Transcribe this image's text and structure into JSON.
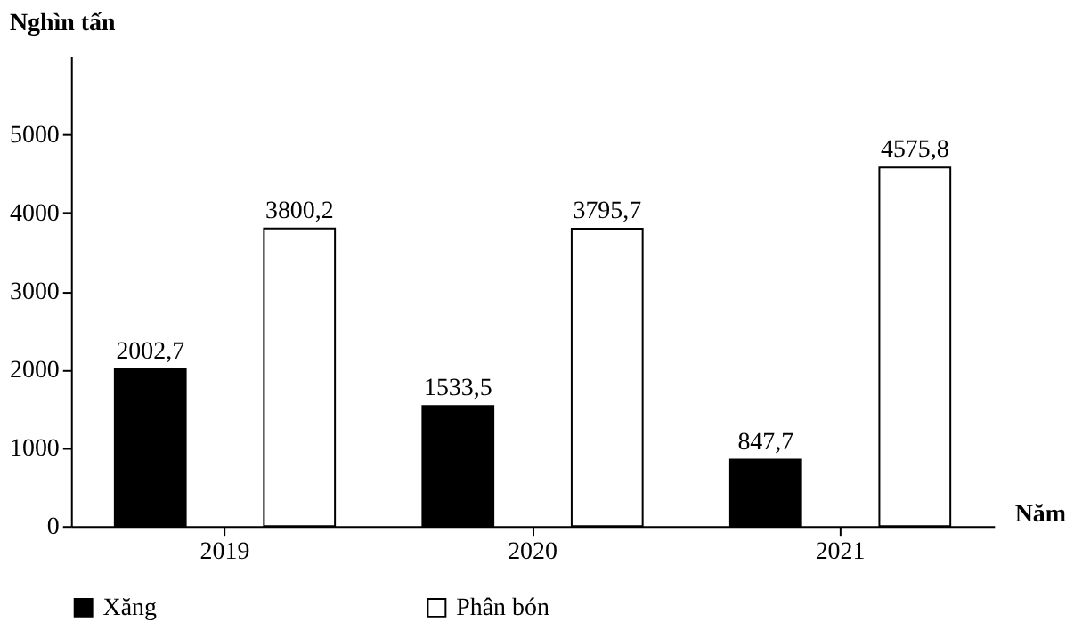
{
  "chart_data": {
    "type": "bar",
    "xlabel": "Năm",
    "ylabel": "Nghìn tấn",
    "categories": [
      "2019",
      "2020",
      "2021"
    ],
    "series": [
      {
        "name": "Xăng",
        "color": "#000000",
        "values": [
          2002.7,
          1533.5,
          847.7
        ],
        "value_labels": [
          "2002,7",
          "1533,5",
          "847,7"
        ]
      },
      {
        "name": "Phân bón",
        "color": "#ffffff",
        "values": [
          3800.2,
          3795.7,
          4575.8
        ],
        "value_labels": [
          "3800,2",
          "3795,7",
          "4575,8"
        ]
      }
    ],
    "ylim": [
      0,
      6000
    ],
    "yticks": [
      0,
      1000,
      2000,
      3000,
      4000,
      5000
    ],
    "grid": false,
    "legend": "bottom"
  }
}
